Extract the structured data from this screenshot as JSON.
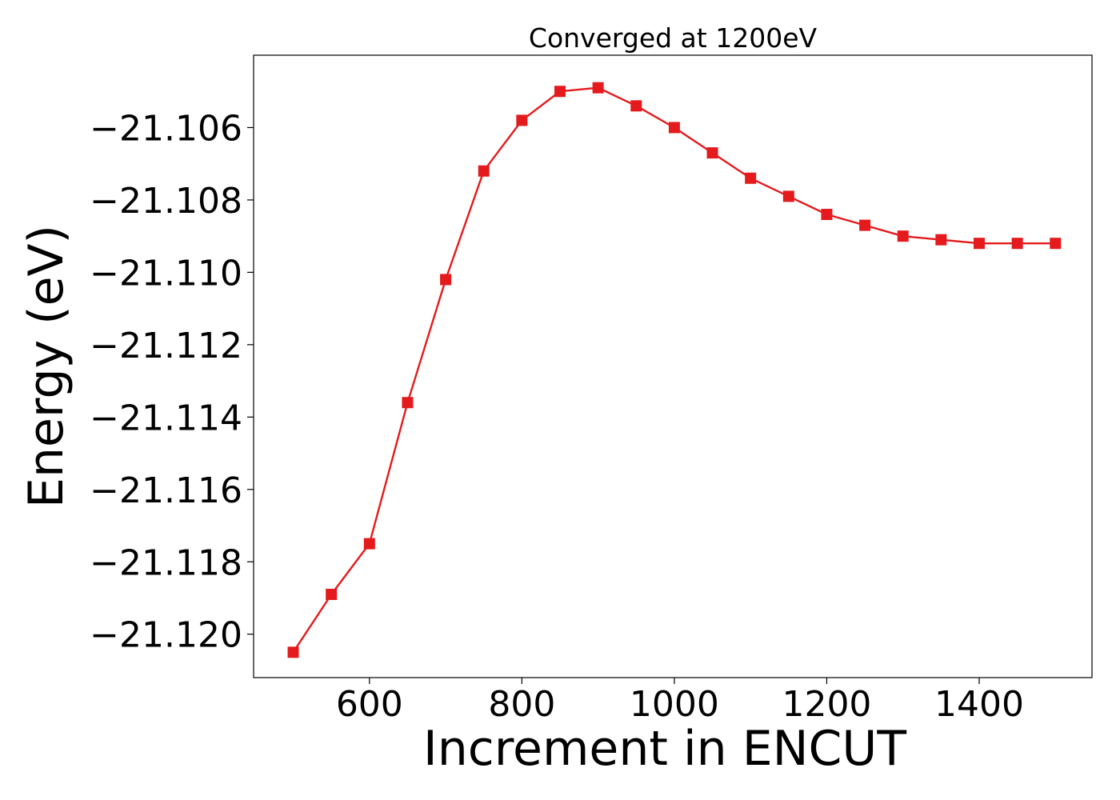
{
  "chart_data": {
    "type": "line",
    "title": "Converged at 1200eV",
    "xlabel": "Increment in ENCUT",
    "ylabel": "Energy (eV)",
    "xlim": [
      448,
      1548
    ],
    "ylim": [
      -21.1212,
      -21.104
    ],
    "xticks": [
      600,
      800,
      1000,
      1200,
      1400
    ],
    "yticks": [
      -21.106,
      -21.108,
      -21.11,
      -21.112,
      -21.114,
      -21.116,
      -21.118,
      -21.12
    ],
    "ytick_labels": [
      "−21.106",
      "−21.108",
      "−21.110",
      "−21.112",
      "−21.114",
      "−21.116",
      "−21.118",
      "−21.120"
    ],
    "grid": false,
    "series": [
      {
        "color": "#e41a1c",
        "marker": "square",
        "x": [
          500,
          550,
          600,
          650,
          700,
          750,
          800,
          850,
          900,
          950,
          1000,
          1050,
          1100,
          1150,
          1200,
          1250,
          1300,
          1350,
          1400,
          1450,
          1500
        ],
        "y": [
          -21.1205,
          -21.1189,
          -21.1175,
          -21.1136,
          -21.1102,
          -21.1072,
          -21.1058,
          -21.105,
          -21.1049,
          -21.1054,
          -21.106,
          -21.1067,
          -21.1074,
          -21.1079,
          -21.1084,
          -21.1087,
          -21.109,
          -21.1091,
          -21.1092,
          -21.1092,
          -21.1092
        ]
      }
    ]
  }
}
